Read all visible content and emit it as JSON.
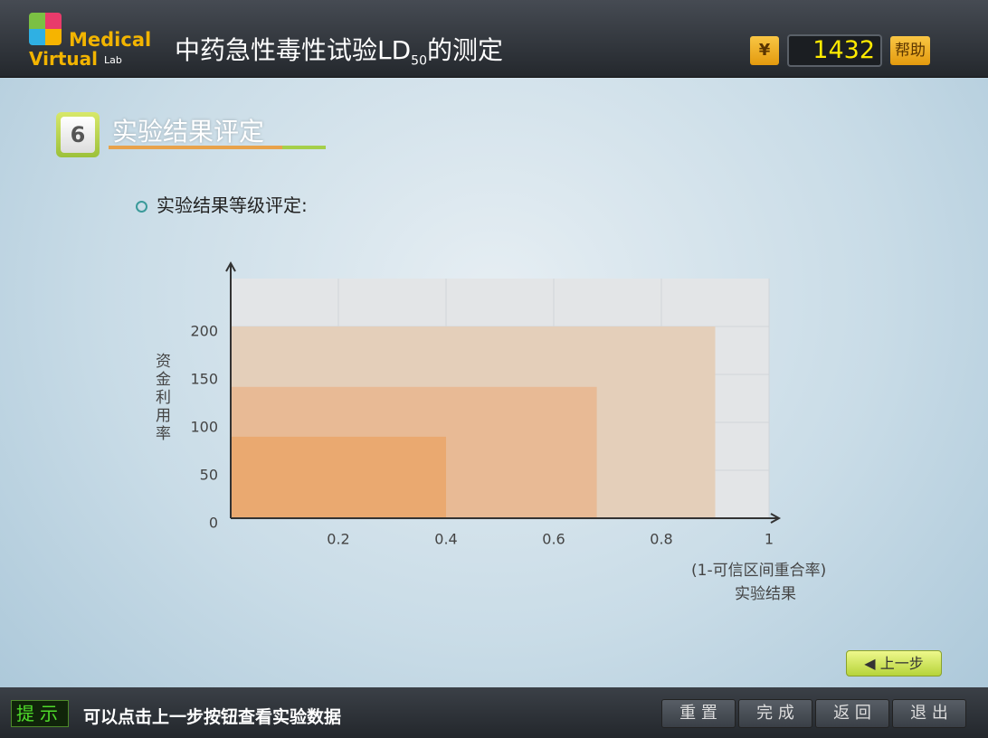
{
  "header": {
    "logo_top": "Medical",
    "logo_bottom": "Virtual",
    "logo_small": "Lab",
    "title_main": "中药急性毒性试验LD",
    "title_sub": "50",
    "title_end": "的测定",
    "currency": "¥",
    "counter": "1432",
    "help": "帮助"
  },
  "step": {
    "number": "6",
    "title": "实验结果评定",
    "bullet": "实验结果等级评定:"
  },
  "chart_data": {
    "type": "nested-rect",
    "y_label": "资金利用率",
    "x_label": "(1-可信区间重合率)",
    "x_title": "实验结果",
    "x": [
      0.4,
      0.68,
      0.9
    ],
    "values": [
      85,
      137,
      200
    ],
    "colors": [
      "#eaa970",
      "#e8ba95",
      "#e4cfba"
    ],
    "xlim": [
      0,
      1
    ],
    "ylim": [
      0,
      250
    ],
    "xticks": [
      0.2,
      0.4,
      0.6,
      0.8,
      1
    ],
    "yticks": [
      0,
      50,
      100,
      150,
      200
    ],
    "grid": true
  },
  "nav": {
    "back": "◀ 上一步"
  },
  "footer": {
    "hint_label": "提示",
    "hint": "可以点击上一步按钮查看实验数据",
    "buttons": [
      "重 置",
      "完 成",
      "返 回",
      "退 出"
    ]
  }
}
